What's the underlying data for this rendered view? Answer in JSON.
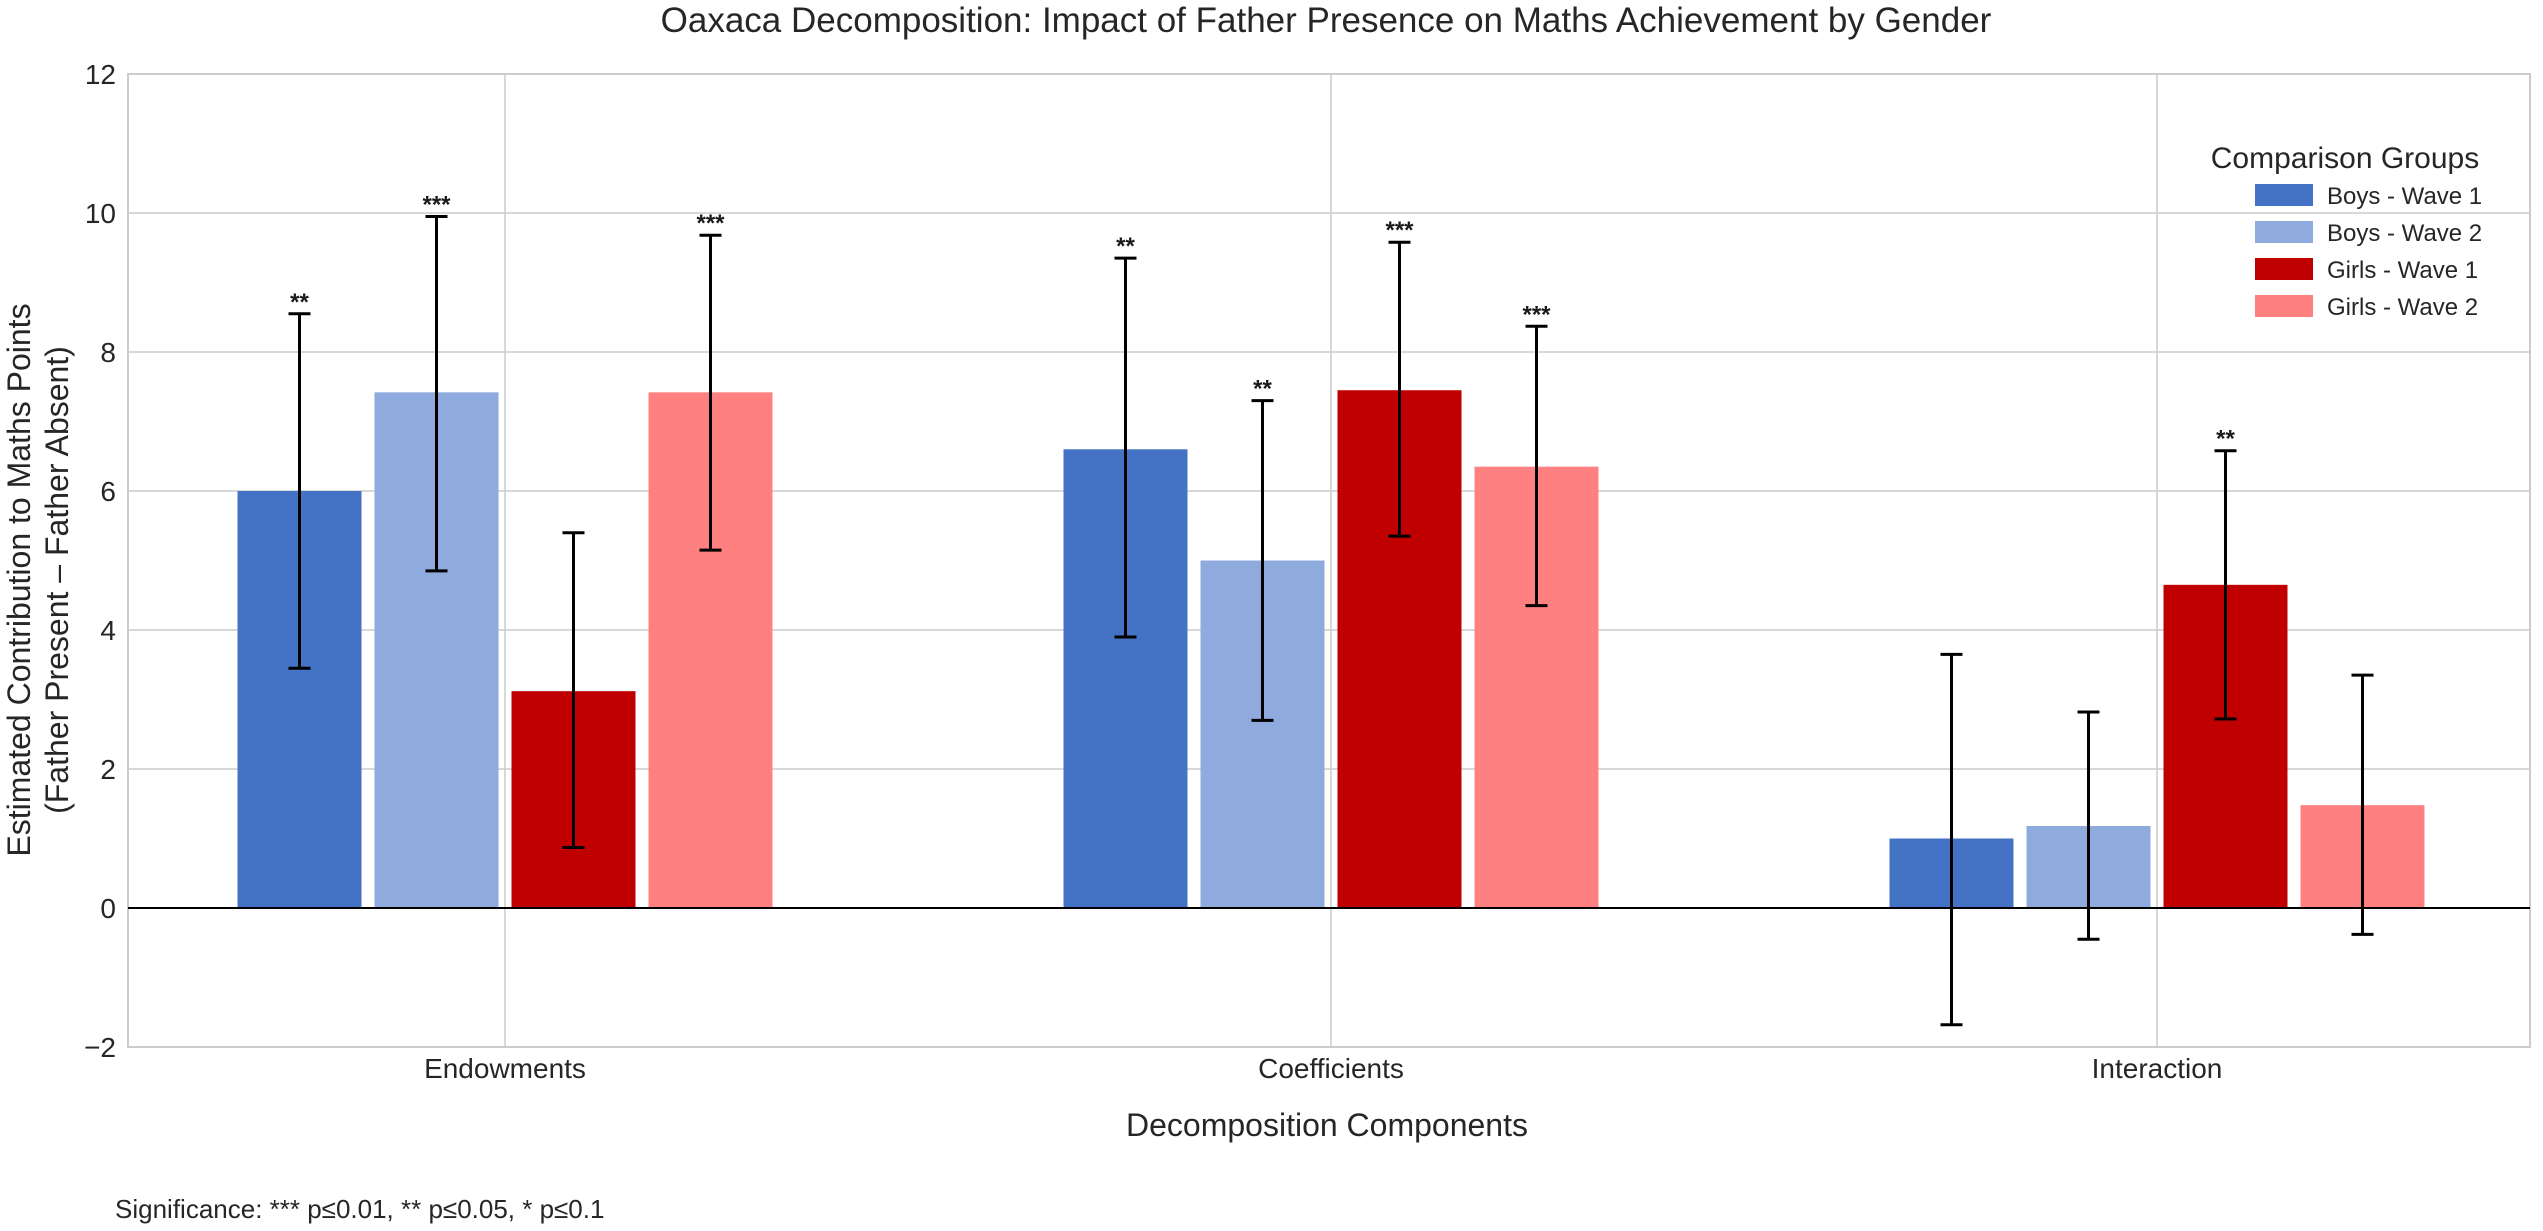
{
  "chart_data": {
    "type": "bar",
    "title": "Oaxaca Decomposition: Impact of Father Presence on Maths Achievement by Gender",
    "xlabel": "Decomposition Components",
    "ylabel_lines": [
      "Estimated Contribution to Maths Points",
      "(Father Present – Father Absent)"
    ],
    "categories": [
      "Endowments",
      "Coefficients",
      "Interaction"
    ],
    "ylim": [
      -2,
      12
    ],
    "yticks": [
      -2,
      0,
      2,
      4,
      6,
      8,
      10,
      12
    ],
    "ytick_labels": [
      "−2",
      "0",
      "2",
      "4",
      "6",
      "8",
      "10",
      "12"
    ],
    "grid": true,
    "legend": {
      "title": "Comparison Groups",
      "placement": "top-right"
    },
    "series": [
      {
        "name": "Boys - Wave 1",
        "color": "#4472c4",
        "values": [
          6.0,
          6.6,
          1.0
        ],
        "ci_low": [
          3.45,
          3.9,
          -1.68
        ],
        "ci_high": [
          8.55,
          9.35,
          3.65
        ],
        "significance": [
          "**",
          "**",
          ""
        ]
      },
      {
        "name": "Boys - Wave 2",
        "color": "#8faadc",
        "values": [
          7.42,
          5.0,
          1.18
        ],
        "ci_low": [
          4.85,
          2.7,
          -0.45
        ],
        "ci_high": [
          9.95,
          7.3,
          2.82
        ],
        "significance": [
          "***",
          "**",
          ""
        ]
      },
      {
        "name": "Girls - Wave 1",
        "color": "#c00000",
        "values": [
          3.12,
          7.45,
          4.65
        ],
        "ci_low": [
          0.87,
          5.35,
          2.72
        ],
        "ci_high": [
          5.4,
          9.58,
          6.58
        ],
        "significance": [
          "",
          "***",
          "**"
        ]
      },
      {
        "name": "Girls - Wave 2",
        "color": "#ff8080",
        "values": [
          7.42,
          6.35,
          1.48
        ],
        "ci_low": [
          5.15,
          4.35,
          -0.38
        ],
        "ci_high": [
          9.68,
          8.37,
          3.35
        ],
        "significance": [
          "***",
          "***",
          ""
        ]
      }
    ],
    "footnote": "Significance: *** p≤0.01, ** p≤0.05, * p≤0.1"
  }
}
